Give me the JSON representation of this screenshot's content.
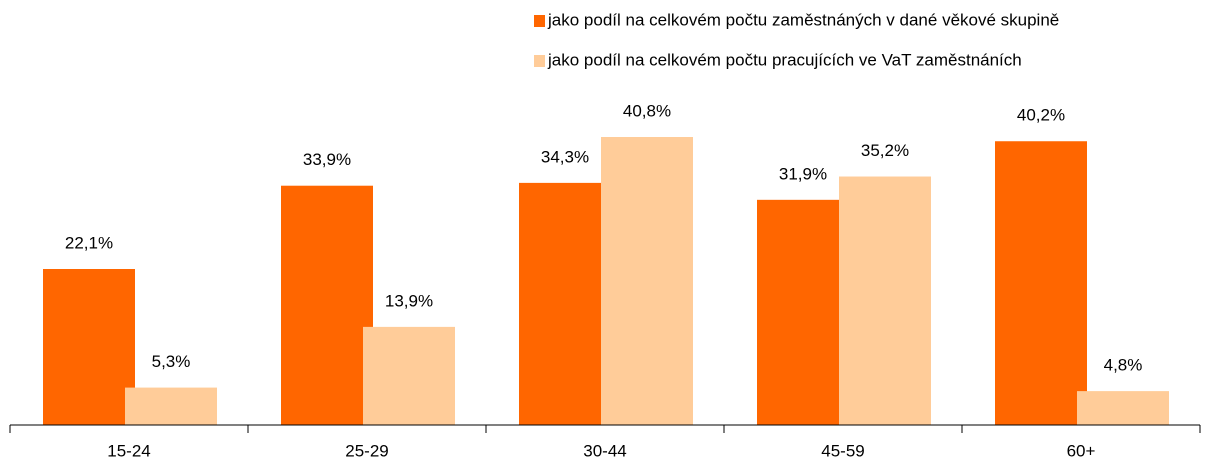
{
  "chart_data": {
    "type": "bar",
    "categories": [
      "15-24",
      "25-29",
      "30-44",
      "45-59",
      "60+"
    ],
    "series": [
      {
        "name": "jako podíl na celkovém počtu zaměstnáných v dané věkové skupině",
        "color": "#ff6600",
        "values": [
          22.1,
          33.9,
          34.3,
          31.9,
          40.2
        ],
        "value_labels": [
          "22,1%",
          "33,9%",
          "34,3%",
          "31,9%",
          "40,2%"
        ]
      },
      {
        "name": "jako podíl na celkovém počtu pracujících ve VaT zaměstnáních",
        "color": "#ffcc99",
        "values": [
          5.3,
          13.9,
          40.8,
          35.2,
          4.8
        ],
        "value_labels": [
          "5,3%",
          "13,9%",
          "40,8%",
          "35,2%",
          "4,8%"
        ]
      }
    ]
  }
}
